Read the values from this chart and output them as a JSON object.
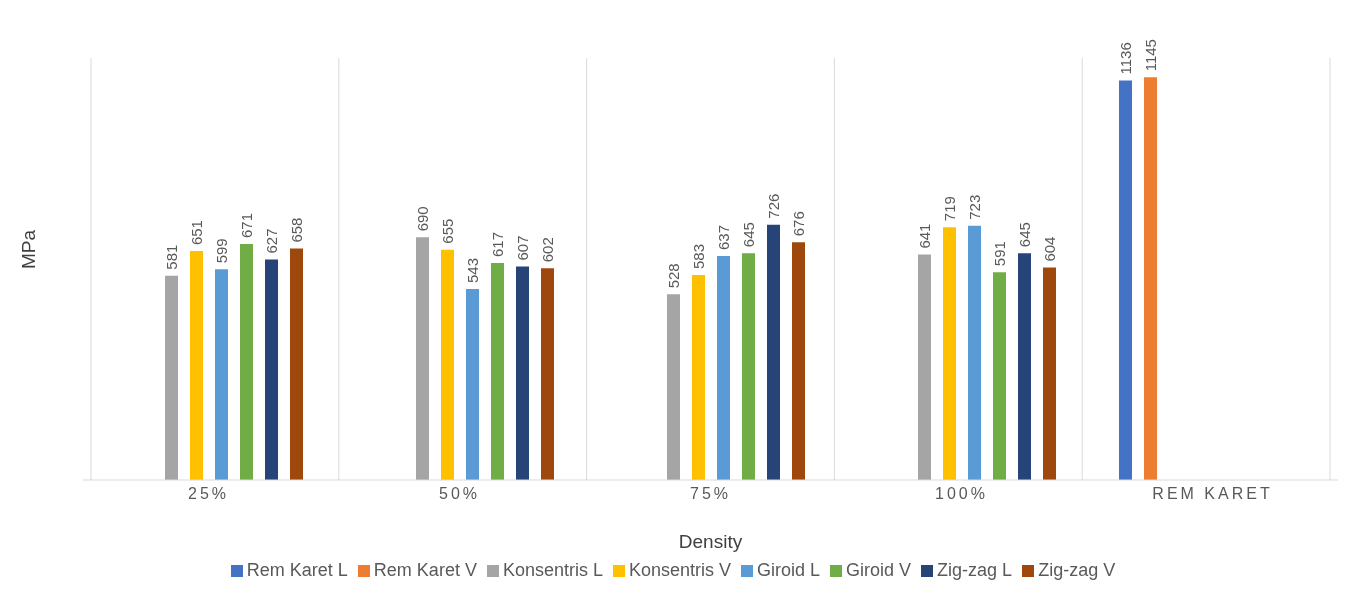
{
  "chart_data": {
    "type": "bar",
    "xlabel": "Density",
    "ylabel": "MPa",
    "categories": [
      "25%",
      "50%",
      "75%",
      "100%",
      "REM KARET"
    ],
    "series": [
      {
        "name": "Rem Karet L",
        "color": "#4472c4",
        "values": [
          null,
          null,
          null,
          null,
          1136
        ]
      },
      {
        "name": "Rem Karet V",
        "color": "#ed7d31",
        "values": [
          null,
          null,
          null,
          null,
          1145
        ]
      },
      {
        "name": "Konsentris L",
        "color": "#a5a5a5",
        "values": [
          581,
          690,
          528,
          641,
          null
        ]
      },
      {
        "name": "Konsentris V",
        "color": "#ffc000",
        "values": [
          651,
          655,
          583,
          719,
          null
        ]
      },
      {
        "name": "Giroid L",
        "color": "#5b9bd5",
        "values": [
          599,
          543,
          637,
          723,
          null
        ]
      },
      {
        "name": "Giroid V",
        "color": "#70ad47",
        "values": [
          671,
          617,
          645,
          591,
          null
        ]
      },
      {
        "name": "Zig-zag L",
        "color": "#264478",
        "values": [
          627,
          607,
          726,
          645,
          null
        ]
      },
      {
        "name": "Zig-zag V",
        "color": "#9e480e",
        "values": [
          658,
          602,
          676,
          604,
          null
        ]
      }
    ],
    "data_labels": true,
    "grid": "x",
    "legend": "bottom",
    "tick_labels": "x"
  }
}
